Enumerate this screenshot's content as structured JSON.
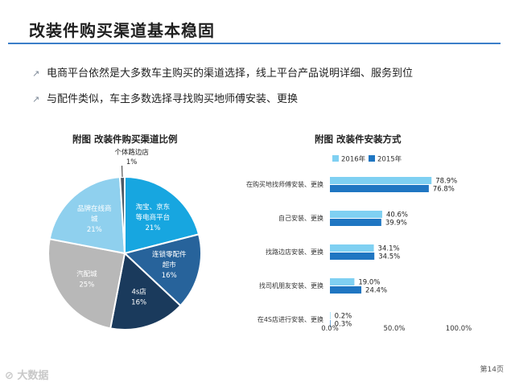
{
  "page": {
    "title": "改装件购买渠道基本稳固",
    "bullets": [
      "电商平台依然是大多数车主购买的渠道选择，线上平台产品说明详细、服务到位",
      "与配件类似，车主多数选择寻找购买地师傅安装、更换"
    ],
    "footer_logo": "大数据",
    "page_number": "第14页"
  },
  "colors": {
    "accent": "#3b7fc9",
    "pie_colors": [
      "#17a6e0",
      "#27639b",
      "#1a3a5c",
      "#b8b8b8",
      "#8fd0ee",
      "#4d5a66"
    ],
    "bar_2016": "#7fd0f2",
    "bar_2015": "#1f76c2"
  },
  "chart_data": [
    {
      "type": "pie",
      "title": "附图  改装件购买渠道比例",
      "slices": [
        {
          "name": "淘宝、京东等电商平台",
          "label_lines": [
            "淘宝、京东",
            "等电商平台"
          ],
          "value": 21
        },
        {
          "name": "连锁零配件超市",
          "label_lines": [
            "连锁零配件",
            "超市"
          ],
          "value": 16
        },
        {
          "name": "4s店",
          "label_lines": [
            "4s店"
          ],
          "value": 16
        },
        {
          "name": "汽配城",
          "label_lines": [
            "汽配城"
          ],
          "value": 25
        },
        {
          "name": "品牌在线商城",
          "label_lines": [
            "品牌在线商",
            "城"
          ],
          "value": 21
        },
        {
          "name": "个体路边店",
          "label_lines": [
            "个体路边店"
          ],
          "value": 1
        }
      ],
      "unit": "%"
    },
    {
      "type": "bar",
      "orientation": "horizontal",
      "title": "附图  改装件安装方式",
      "categories": [
        "在购买地找师傅安装、更换",
        "自己安装、更换",
        "找路边店安装、更换",
        "找司机朋友安装、更换",
        "在4S店进行安装、更换"
      ],
      "series": [
        {
          "name": "2016年",
          "values": [
            78.9,
            40.6,
            34.1,
            19.0,
            0.2
          ]
        },
        {
          "name": "2015年",
          "values": [
            76.8,
            39.9,
            34.5,
            24.4,
            0.3
          ]
        }
      ],
      "xlim": [
        0,
        100
      ],
      "x_ticks": [
        "0.0%",
        "50.0%",
        "100.0%"
      ],
      "legend": "top"
    }
  ]
}
